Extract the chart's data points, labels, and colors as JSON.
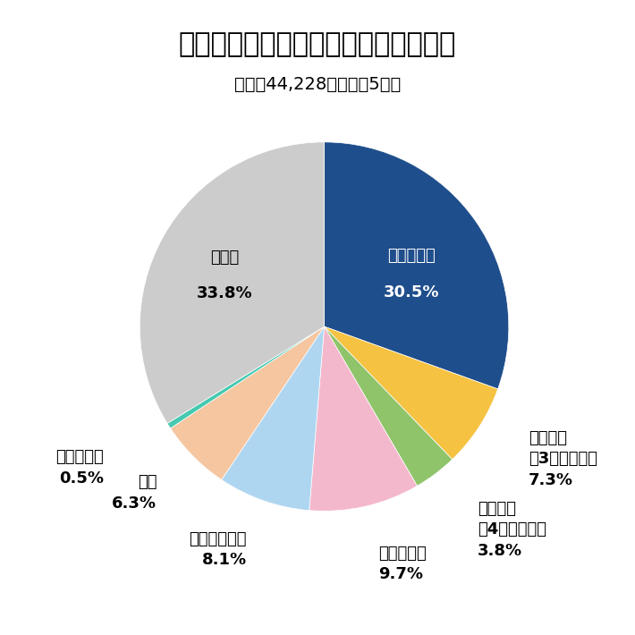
{
  "title": "侵入窃盗の発生場所別認知件数の割合",
  "subtitle": "総数：44,228件（令和5年）",
  "labels": [
    "一戸建住宅",
    "共同住宅\n（3階建以下）",
    "共同住宅\n（4階建以上）",
    "一般事務所",
    "生活環境営業",
    "商店",
    "金融機関等",
    "その他"
  ],
  "values": [
    30.5,
    7.3,
    3.8,
    9.7,
    8.1,
    6.3,
    0.5,
    33.8
  ],
  "colors": [
    "#1f4e8c",
    "#f5c242",
    "#8fc46a",
    "#f4b8cc",
    "#aed6f1",
    "#f5c6a0",
    "#45c9b0",
    "#cccccc"
  ],
  "label_colors": {
    "一戸建住宅": "#ffffff",
    "その他": "#000000"
  },
  "pct_labels": [
    "30.5%",
    "7.3%",
    "3.8%",
    "9.7%",
    "8.1%",
    "6.3%",
    "0.5%",
    "33.8%"
  ],
  "startangle": 90,
  "background_color": "#ffffff",
  "title_fontsize": 22,
  "subtitle_fontsize": 14,
  "label_fontsize": 13,
  "pct_fontsize": 13
}
